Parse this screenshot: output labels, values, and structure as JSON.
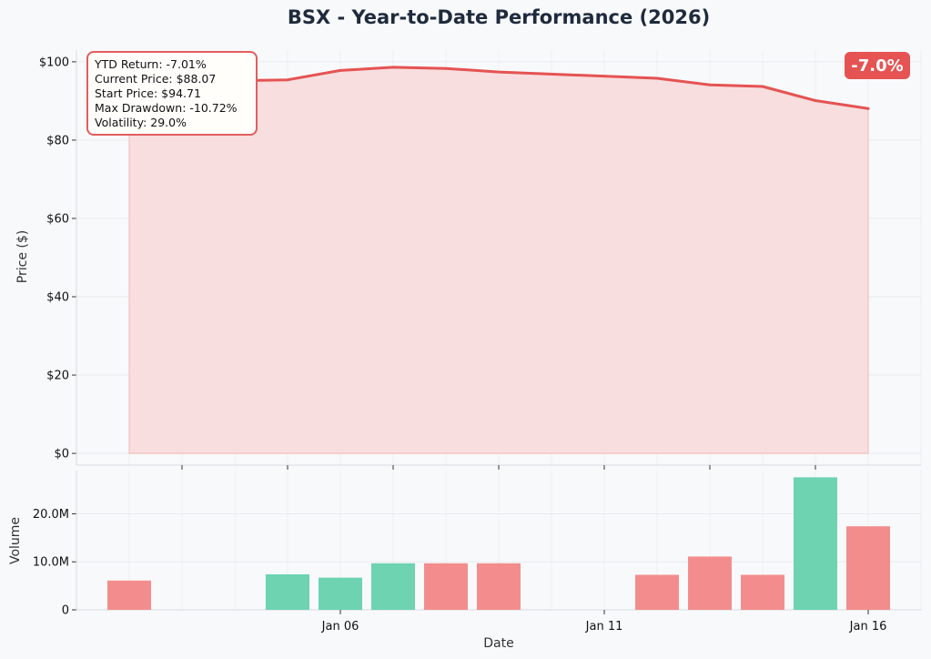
{
  "chart_data": [
    {
      "type": "area",
      "title": "BSX - Year-to-Date Performance (2026)",
      "ylabel": "Price ($)",
      "ylim": [
        -3,
        103
      ],
      "yticks": [
        0,
        20,
        40,
        60,
        80,
        100
      ],
      "ytick_labels": [
        "$0",
        "$20",
        "$40",
        "$60",
        "$80",
        "$100"
      ],
      "x": [
        "2026-01-02",
        "2026-01-05",
        "2026-01-06",
        "2026-01-07",
        "2026-01-08",
        "2026-01-09",
        "2026-01-12",
        "2026-01-13",
        "2026-01-14",
        "2026-01-15",
        "2026-01-16"
      ],
      "values": [
        94.71,
        95.4,
        97.8,
        98.6,
        98.3,
        97.4,
        95.8,
        94.1,
        93.7,
        90.1,
        88.07
      ],
      "line_color": "#e55353",
      "fill_color": "#f8dede",
      "grid": true,
      "stats_box": [
        "YTD Return: -7.01%",
        "Current Price: $88.07",
        "Start Price: $94.71",
        "Max Drawdown: -10.72%",
        "Volatility: 29.0%"
      ],
      "badge": "-7.0%"
    },
    {
      "type": "bar",
      "xlabel": "Date",
      "ylabel": "Volume",
      "ylim": [
        0,
        29000000
      ],
      "yticks": [
        0,
        10000000,
        20000000
      ],
      "ytick_labels": [
        "0",
        "10.0M",
        "20.0M"
      ],
      "xtick_labels": [
        "Jan 06",
        "Jan 11",
        "Jan 16"
      ],
      "x": [
        "2026-01-02",
        "2026-01-05",
        "2026-01-06",
        "2026-01-07",
        "2026-01-08",
        "2026-01-09",
        "2026-01-12",
        "2026-01-13",
        "2026-01-14",
        "2026-01-15",
        "2026-01-16"
      ],
      "values": [
        6100000,
        7400000,
        6700000,
        9700000,
        9700000,
        9700000,
        7300000,
        11100000,
        7300000,
        27600000,
        17400000
      ],
      "bar_colors": [
        "#f38d8d",
        "#6dd3b1",
        "#6dd3b1",
        "#6dd3b1",
        "#f38d8d",
        "#f38d8d",
        "#f38d8d",
        "#f38d8d",
        "#f38d8d",
        "#6dd3b1",
        "#f38d8d"
      ],
      "grid": true
    }
  ]
}
